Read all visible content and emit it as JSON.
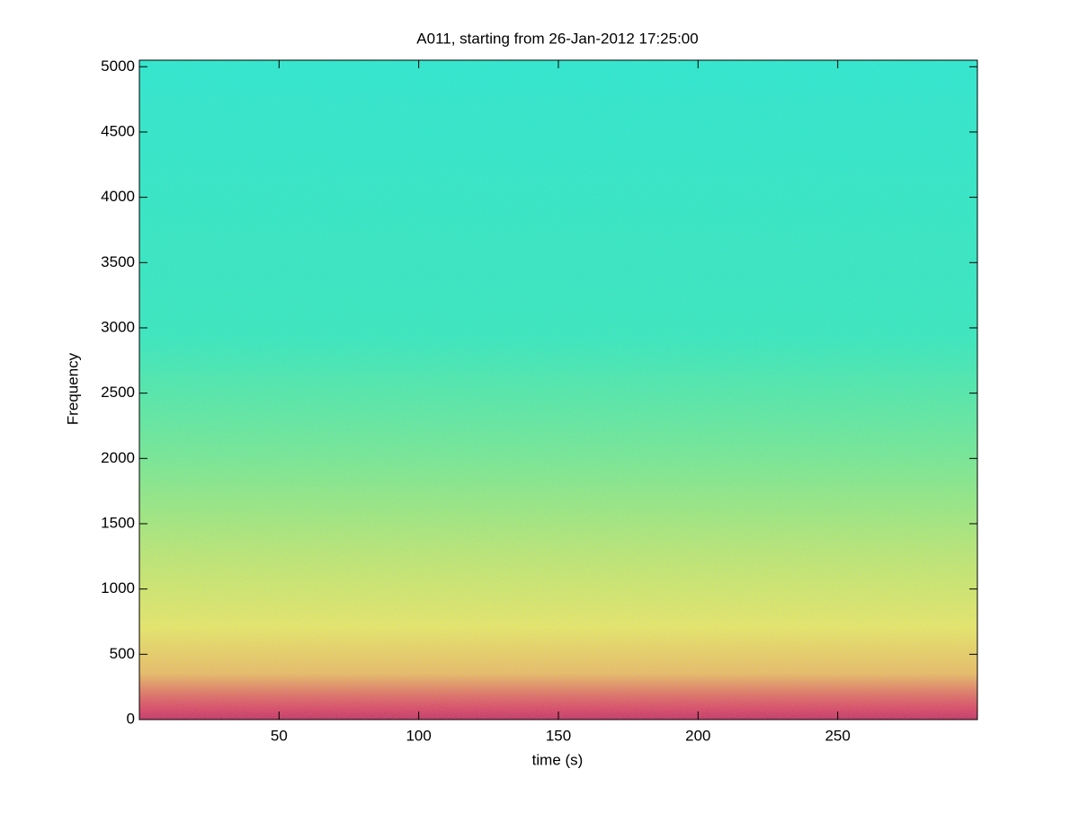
{
  "chart_data": {
    "type": "spectrogram",
    "title": "A011, starting from 26-Jan-2012 17:25:00",
    "x_label": "time (s)",
    "y_label": "Frequency",
    "xlim": [
      0,
      300
    ],
    "xticks": [
      50,
      100,
      150,
      200,
      250
    ],
    "ylim": [
      0,
      5050
    ],
    "yticks": [
      0,
      500,
      1000,
      1500,
      2000,
      2500,
      3000,
      3500,
      4000,
      4500,
      5000
    ]
  }
}
